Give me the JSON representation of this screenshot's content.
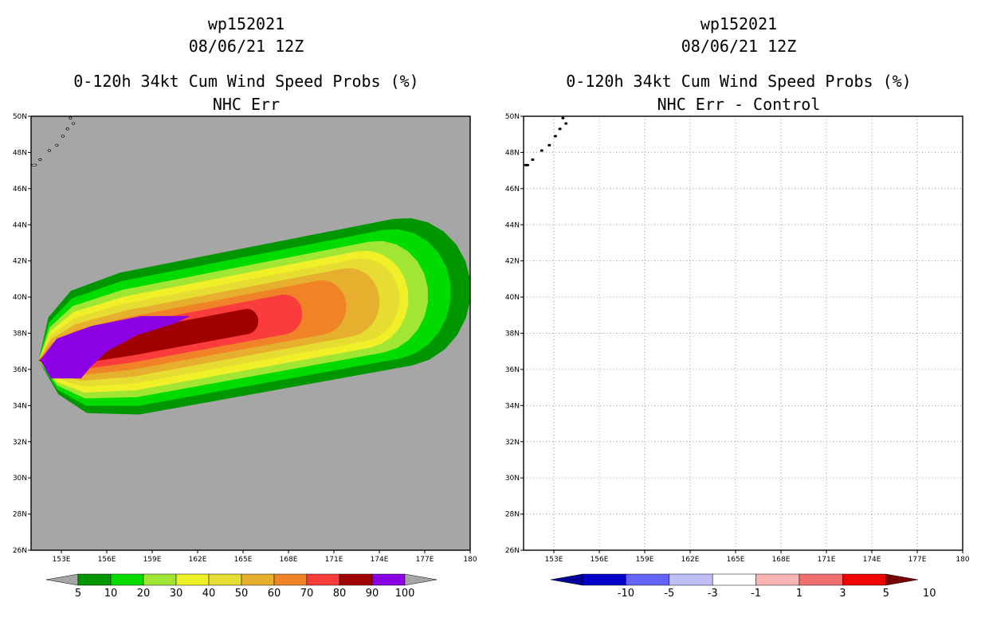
{
  "left": {
    "title1": "wp152021",
    "title2": "08/06/21 12Z",
    "title3": "0-120h 34kt Cum Wind Speed Probs (%)",
    "title4": "NHC Err"
  },
  "right": {
    "title1": "wp152021",
    "title2": "08/06/21 12Z",
    "title3": "0-120h 34kt Cum Wind Speed Probs (%)",
    "title4": "NHC Err - Control"
  },
  "chart_data": [
    {
      "type": "heatmap",
      "title": "0-120h 34kt Cum Wind Speed Probs (%) — NHC Err",
      "xlim": [
        151,
        180
      ],
      "ylim": [
        26,
        50
      ],
      "x_ticks": [
        153,
        156,
        159,
        162,
        165,
        168,
        171,
        174,
        177,
        180
      ],
      "x_tick_labels": [
        "153E",
        "156E",
        "159E",
        "162E",
        "165E",
        "168E",
        "171E",
        "174E",
        "177E",
        "180"
      ],
      "y_ticks": [
        26,
        28,
        30,
        32,
        34,
        36,
        38,
        40,
        42,
        44,
        46,
        48,
        50
      ],
      "y_tick_labels": [
        "26N",
        "28N",
        "30N",
        "32N",
        "34N",
        "36N",
        "38N",
        "40N",
        "42N",
        "44N",
        "46N",
        "48N",
        "50N"
      ],
      "background_color": "#a6a6a6",
      "levels": [
        5,
        10,
        20,
        30,
        40,
        50,
        60,
        70,
        80,
        90,
        100
      ],
      "level_labels": [
        "5",
        "10",
        "20",
        "30",
        "40",
        "50",
        "60",
        "70",
        "80",
        "90",
        "100"
      ],
      "level_colors": [
        "#009600",
        "#00dc00",
        "#a0e632",
        "#f0f028",
        "#e6dc32",
        "#e6af2d",
        "#f08228",
        "#fa3c3c",
        "#a00000",
        "#8c00e6"
      ],
      "swath": {
        "axis_start": [
          151.6,
          36.5
        ],
        "axis_end": [
          177.0,
          40.5
        ],
        "band_halfwidths_deg_lat": [
          4.1,
          3.6,
          3.1,
          2.7,
          2.3,
          1.9,
          1.5,
          1.1,
          0.7,
          0.0
        ],
        "band_end_lon": [
          180.0,
          178.7,
          177.2,
          175.9,
          175.3,
          174.0,
          171.8,
          168.9,
          166.0,
          162.0
        ]
      }
    },
    {
      "type": "heatmap",
      "title": "0-120h 34kt Cum Wind Speed Probs (%) — NHC Err - Control",
      "xlim": [
        151,
        180
      ],
      "ylim": [
        26,
        50
      ],
      "x_tick_labels": [
        "153E",
        "156E",
        "159E",
        "162E",
        "165E",
        "168E",
        "171E",
        "174E",
        "177E",
        "180"
      ],
      "y_tick_labels": [
        "26N",
        "28N",
        "30N",
        "32N",
        "34N",
        "36N",
        "38N",
        "40N",
        "42N",
        "44N",
        "46N",
        "48N",
        "50N"
      ],
      "grid": true,
      "levels_labels": [
        "-10",
        "-5",
        "-3",
        "-1",
        "1",
        "3",
        "5",
        "10"
      ],
      "level_colors": [
        "#0000c8",
        "#6464fa",
        "#bebefa",
        "#ffffff",
        "#fab4b4",
        "#f07070",
        "#f00000"
      ],
      "end_colors": [
        "#000096",
        "#780000"
      ],
      "values": "all within -1..1 (no difference)"
    }
  ]
}
